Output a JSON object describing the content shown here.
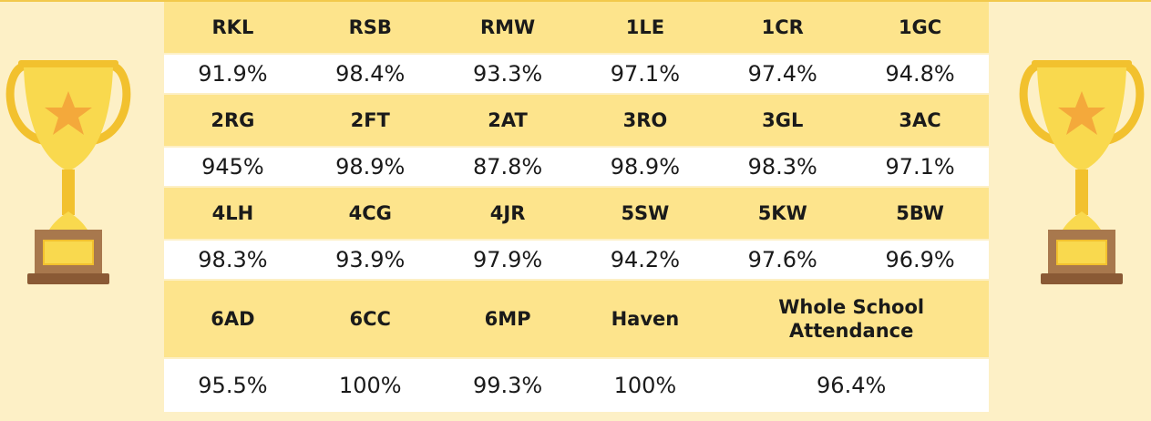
{
  "table": {
    "rows": [
      [
        "RKL",
        "RSB",
        "RMW",
        "1LE",
        "1CR",
        "1GC"
      ],
      [
        "91.9%",
        "98.4%",
        "93.3%",
        "97.1%",
        "97.4%",
        "94.8%"
      ],
      [
        "2RG",
        "2FT",
        "2AT",
        "3RO",
        "3GL",
        "3AC"
      ],
      [
        "945%",
        "98.9%",
        "87.8%",
        "98.9%",
        "98.3%",
        "97.1%"
      ],
      [
        "4LH",
        "4CG",
        "4JR",
        "5SW",
        "5KW",
        "5BW"
      ],
      [
        "98.3%",
        "93.9%",
        "97.9%",
        "94.2%",
        "97.6%",
        "96.9%"
      ],
      [
        "6AD",
        "6CC",
        "6MP",
        "Haven",
        "Whole School Attendance"
      ],
      [
        "95.5%",
        "100%",
        "99.3%",
        "100%",
        "96.4%"
      ]
    ]
  }
}
